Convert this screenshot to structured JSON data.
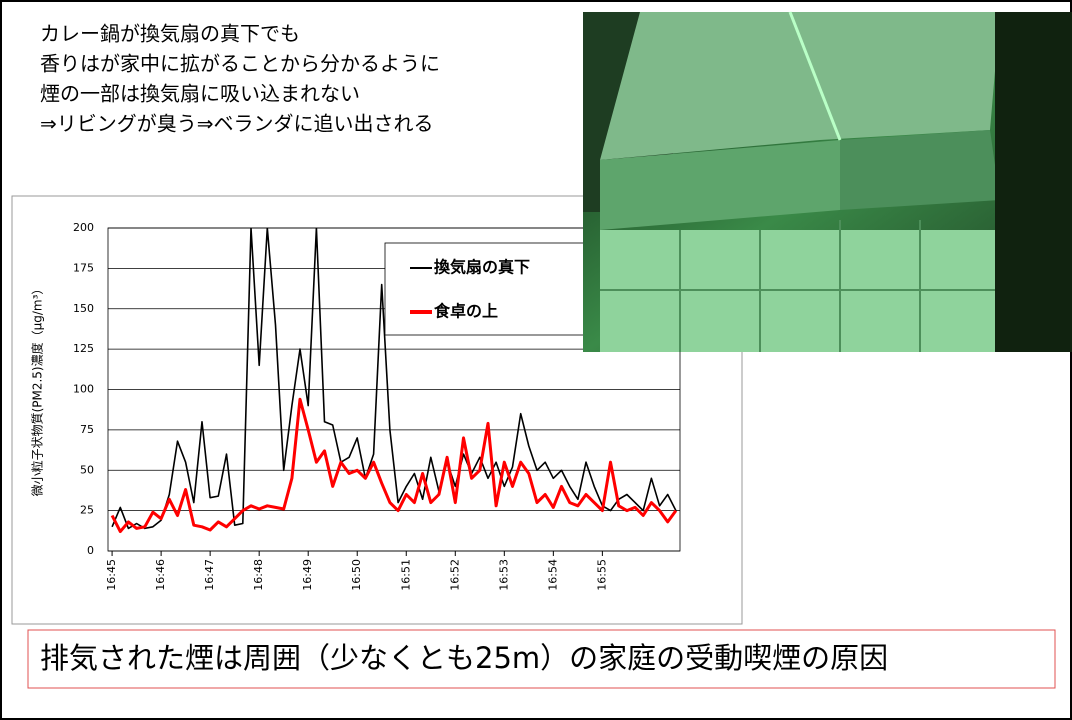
{
  "text_lines": [
    "カレー鍋が換気扇の真下でも",
    "香りはが家中に拡がることから分かるように",
    "煙の一部は換気扇に吸い込まれない",
    "⇒リビングが臭う⇒ベランダに追い出される"
  ],
  "conclusion": "排気された煙は周囲（少なくとも25m）の家庭の受動喫煙の原因",
  "chart_data": {
    "type": "line",
    "y_label": "微小粒子状物質(PM2.5)濃度（μg/m³）",
    "categories": [
      "16:45",
      null,
      null,
      null,
      null,
      null,
      "16:46",
      null,
      null,
      null,
      null,
      null,
      "16:47",
      null,
      null,
      null,
      null,
      null,
      "16:48",
      null,
      null,
      null,
      null,
      null,
      "16:49",
      null,
      null,
      null,
      null,
      null,
      "16:50",
      null,
      null,
      null,
      null,
      null,
      "16:51",
      null,
      null,
      null,
      null,
      null,
      "16:52",
      null,
      null,
      null,
      null,
      null,
      "16:53",
      null,
      null,
      null,
      null,
      null,
      "16:54",
      null,
      null,
      null,
      null,
      null,
      "16:55",
      null,
      null,
      null,
      null,
      null,
      null,
      null,
      null,
      null
    ],
    "series": [
      {
        "name": "換気扇の真下",
        "color": "#000000",
        "values": [
          15,
          27,
          14,
          17,
          14,
          15,
          19,
          35,
          68,
          55,
          30,
          80,
          33,
          34,
          60,
          16,
          17,
          200,
          115,
          200,
          140,
          50,
          90,
          125,
          90,
          200,
          80,
          78,
          55,
          58,
          70,
          45,
          60,
          165,
          75,
          30,
          40,
          48,
          32,
          58,
          37,
          55,
          40,
          60,
          48,
          58,
          45,
          55,
          40,
          52,
          85,
          65,
          50,
          55,
          45,
          50,
          40,
          32,
          55,
          40,
          28,
          25,
          32,
          35,
          30,
          25,
          45,
          28,
          35,
          25
        ]
      },
      {
        "name": "食卓の上",
        "color": "#ff0000",
        "values": [
          22,
          12,
          18,
          14,
          15,
          24,
          20,
          32,
          22,
          38,
          16,
          15,
          13,
          18,
          15,
          20,
          25,
          28,
          26,
          28,
          27,
          26,
          45,
          94,
          75,
          55,
          62,
          40,
          55,
          48,
          50,
          45,
          55,
          42,
          30,
          25,
          35,
          30,
          48,
          30,
          35,
          58,
          30,
          70,
          45,
          50,
          79,
          28,
          55,
          40,
          55,
          48,
          30,
          35,
          27,
          40,
          30,
          28,
          35,
          30,
          25,
          55,
          28,
          25,
          27,
          22,
          30,
          25,
          18,
          25
        ]
      }
    ],
    "ylim": [
      0,
      200
    ],
    "yticks": [
      0,
      25,
      50,
      75,
      100,
      125,
      150,
      175,
      200
    ],
    "grid": true
  }
}
